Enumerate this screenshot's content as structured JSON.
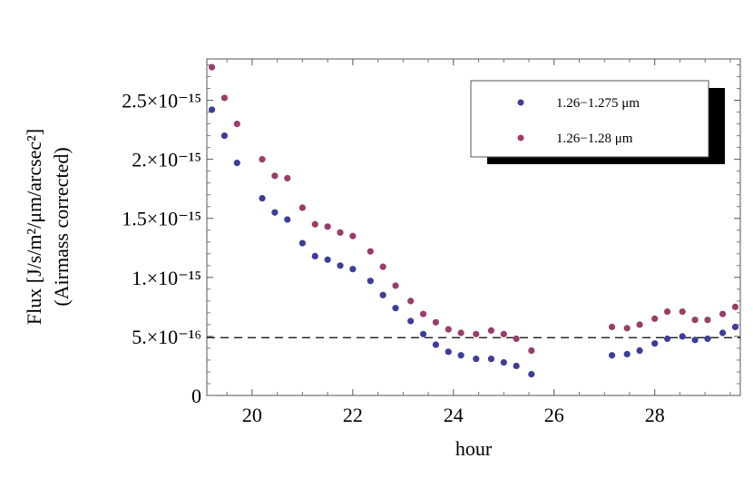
{
  "chart_data": {
    "type": "scatter",
    "title": "",
    "xlabel": "hour",
    "ylabel_line1": "Flux [J/s/m²/μm/arcsec²]",
    "ylabel_line2": "(Airmass corrected)",
    "xlim": [
      19.1,
      29.7
    ],
    "ylim": [
      0,
      2.85e-15
    ],
    "x_ticks": [
      {
        "value": 20,
        "label": "20"
      },
      {
        "value": 22,
        "label": "22"
      },
      {
        "value": 24,
        "label": "24"
      },
      {
        "value": 26,
        "label": "26"
      },
      {
        "value": 28,
        "label": "28"
      }
    ],
    "y_ticks": [
      {
        "value": 0,
        "label": "0"
      },
      {
        "value": 5e-16,
        "label": "5.×10⁻¹⁶"
      },
      {
        "value": 1e-15,
        "label": "1.×10⁻¹⁵"
      },
      {
        "value": 1.5e-15,
        "label": "1.5×10⁻¹⁵"
      },
      {
        "value": 2e-15,
        "label": "2.×10⁻¹⁵"
      },
      {
        "value": 2.5e-15,
        "label": "2.5×10⁻¹⁵"
      }
    ],
    "reference_line": {
      "y": 4.9e-16,
      "style": "dashed"
    },
    "legend_position": "top-right",
    "series": [
      {
        "name": "1.26−1.275 μm",
        "color": "#3d3d99",
        "x": [
          19.2,
          19.45,
          19.7,
          20.2,
          20.45,
          20.7,
          21.0,
          21.25,
          21.5,
          21.75,
          22.0,
          22.35,
          22.6,
          22.85,
          23.15,
          23.4,
          23.65,
          23.9,
          24.15,
          24.45,
          24.75,
          25.0,
          25.25,
          25.55,
          27.15,
          27.45,
          27.7,
          28.0,
          28.25,
          28.55,
          28.8,
          29.05,
          29.35,
          29.6
        ],
        "y": [
          2.42e-15,
          2.2e-15,
          1.97e-15,
          1.67e-15,
          1.55e-15,
          1.49e-15,
          1.29e-15,
          1.18e-15,
          1.15e-15,
          1.1e-15,
          1.07e-15,
          9.7e-16,
          8.5e-16,
          7.4e-16,
          6.3e-16,
          5.2e-16,
          4.3e-16,
          3.7e-16,
          3.4e-16,
          3.1e-16,
          3.1e-16,
          2.8e-16,
          2.5e-16,
          1.8e-16,
          3.4e-16,
          3.5e-16,
          3.8e-16,
          4.4e-16,
          4.8e-16,
          5e-16,
          4.7e-16,
          4.8e-16,
          5.3e-16,
          5.8e-16
        ]
      },
      {
        "name": "1.26−1.28 μm",
        "color": "#993d6b",
        "x": [
          19.2,
          19.45,
          19.7,
          20.2,
          20.45,
          20.7,
          21.0,
          21.25,
          21.5,
          21.75,
          22.0,
          22.35,
          22.6,
          22.85,
          23.15,
          23.4,
          23.65,
          23.9,
          24.15,
          24.45,
          24.75,
          25.0,
          25.25,
          25.55,
          27.15,
          27.45,
          27.7,
          28.0,
          28.25,
          28.55,
          28.8,
          29.05,
          29.35,
          29.6
        ],
        "y": [
          2.78e-15,
          2.52e-15,
          2.3e-15,
          2e-15,
          1.86e-15,
          1.84e-15,
          1.59e-15,
          1.45e-15,
          1.43e-15,
          1.38e-15,
          1.35e-15,
          1.22e-15,
          1.09e-15,
          9.3e-16,
          8e-16,
          6.9e-16,
          6.2e-16,
          5.6e-16,
          5.3e-16,
          5.2e-16,
          5.5e-16,
          5.2e-16,
          4.8e-16,
          3.8e-16,
          5.8e-16,
          5.7e-16,
          6e-16,
          6.5e-16,
          7.1e-16,
          7.1e-16,
          6.4e-16,
          6.4e-16,
          6.9e-16,
          7.5e-16
        ]
      }
    ]
  }
}
